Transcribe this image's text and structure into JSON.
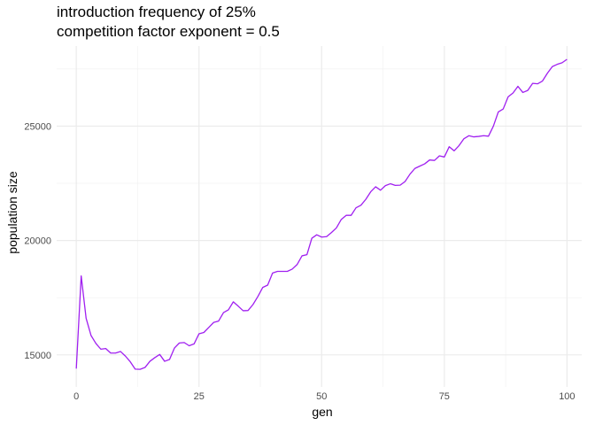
{
  "chart_data": {
    "type": "line",
    "title": "introduction frequency of 25%",
    "subtitle": "competition factor exponent = 0.5",
    "xlabel": "gen",
    "ylabel": "population size",
    "xlim": [
      -4,
      103
    ],
    "ylim": [
      13600,
      28500
    ],
    "x_ticks": [
      0,
      25,
      50,
      75,
      100
    ],
    "x_tick_labels": [
      "0",
      "25",
      "50",
      "75",
      "100"
    ],
    "y_ticks": [
      15000,
      20000,
      25000
    ],
    "y_tick_labels": [
      "15000",
      "20000",
      "25000"
    ],
    "grid": true,
    "legend": "none",
    "line_color": "#A020F0",
    "series": [
      {
        "x": [
          0,
          1,
          2,
          3,
          4,
          5,
          6,
          7,
          8,
          9,
          10,
          11,
          12,
          13,
          14,
          15,
          16,
          17,
          18,
          19,
          20,
          21,
          22,
          23,
          24,
          25,
          26,
          27,
          28,
          29,
          30,
          31,
          32,
          33,
          34,
          35,
          36,
          37,
          38,
          39,
          40,
          41,
          42,
          43,
          44,
          45,
          46,
          47,
          48,
          49,
          50,
          51,
          52,
          53,
          54,
          55,
          56,
          57,
          58,
          59,
          60,
          61,
          62,
          63,
          64,
          65,
          66,
          67,
          68,
          69,
          70,
          71,
          72,
          73,
          74,
          75,
          76,
          77,
          78,
          79,
          80,
          81,
          82,
          83,
          84,
          85,
          86,
          87,
          88,
          89,
          90,
          91,
          92,
          93,
          94,
          95,
          96,
          97,
          98,
          99,
          100
        ],
        "values": [
          14400,
          18450,
          16600,
          15850,
          15500,
          15250,
          15280,
          15080,
          15080,
          15150,
          14950,
          14700,
          14380,
          14370,
          14450,
          14720,
          14880,
          15020,
          14720,
          14800,
          15300,
          15520,
          15540,
          15400,
          15480,
          15920,
          15980,
          16200,
          16420,
          16480,
          16850,
          16970,
          17320,
          17130,
          16930,
          16940,
          17200,
          17550,
          17950,
          18050,
          18580,
          18650,
          18650,
          18650,
          18750,
          18950,
          19330,
          19380,
          20100,
          20250,
          20150,
          20170,
          20350,
          20550,
          20920,
          21100,
          21100,
          21430,
          21540,
          21800,
          22130,
          22350,
          22200,
          22400,
          22480,
          22410,
          22420,
          22580,
          22900,
          23150,
          23250,
          23350,
          23520,
          23500,
          23700,
          23650,
          24100,
          23920,
          24150,
          24450,
          24580,
          24530,
          24550,
          24580,
          24560,
          25000,
          25620,
          25750,
          26280,
          26450,
          26740,
          26470,
          26560,
          26870,
          26850,
          26970,
          27310,
          27600,
          27700,
          27770,
          27920
        ]
      }
    ]
  }
}
